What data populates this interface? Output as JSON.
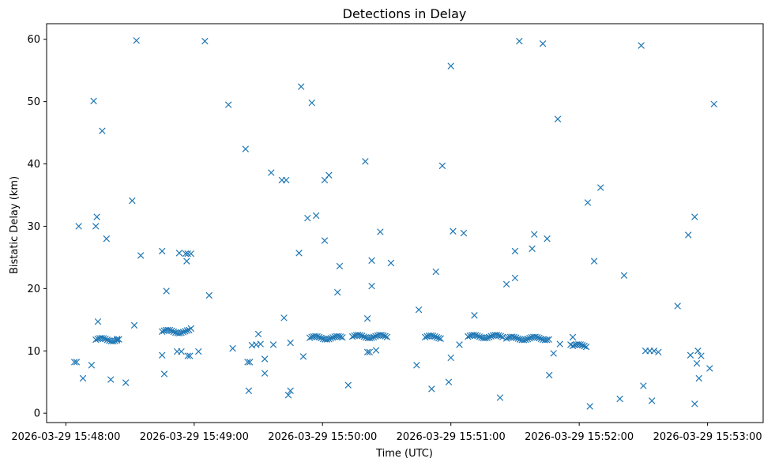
{
  "chart_data": {
    "type": "scatter",
    "title": "Detections in Delay",
    "xlabel": "Time (UTC)",
    "ylabel": "Bistatic Delay (km)",
    "marker": "x",
    "color": "#1f77b4",
    "x_unit": "seconds since 2026-03-29 15:48:00",
    "xlim": [
      -9,
      326
    ],
    "ylim": [
      -1.5,
      62.5
    ],
    "x_tick_labels": [
      {
        "value": 0,
        "label": "2026-03-29 15:48:00"
      },
      {
        "value": 60,
        "label": "2026-03-29 15:49:00"
      },
      {
        "value": 120,
        "label": "2026-03-29 15:50:00"
      },
      {
        "value": 180,
        "label": "2026-03-29 15:51:00"
      },
      {
        "value": 240,
        "label": "2026-03-29 15:52:00"
      },
      {
        "value": 300,
        "label": "2026-03-29 15:53:00"
      }
    ],
    "y_ticks": [
      0,
      10,
      20,
      30,
      40,
      50,
      60
    ],
    "clusters": [
      {
        "start": 14,
        "end": 25,
        "delay": 11.8
      },
      {
        "start": 45,
        "end": 58,
        "delay": 13.1
      },
      {
        "start": 114,
        "end": 130,
        "delay": 12.1
      },
      {
        "start": 134,
        "end": 151,
        "delay": 12.3
      },
      {
        "start": 168,
        "end": 176,
        "delay": 12.2
      },
      {
        "start": 188,
        "end": 205,
        "delay": 12.3
      },
      {
        "start": 206,
        "end": 226,
        "delay": 12.0
      },
      {
        "start": 237,
        "end": 244,
        "delay": 10.8
      }
    ],
    "points": [
      [
        4,
        8.2
      ],
      [
        5,
        8.2
      ],
      [
        6,
        30
      ],
      [
        8,
        5.6
      ],
      [
        12,
        7.7
      ],
      [
        13,
        50.1
      ],
      [
        14,
        30
      ],
      [
        14.5,
        31.5
      ],
      [
        15,
        14.7
      ],
      [
        17,
        45.3
      ],
      [
        19,
        28
      ],
      [
        21,
        5.4
      ],
      [
        24,
        11.9
      ],
      [
        28,
        4.9
      ],
      [
        31,
        34.1
      ],
      [
        32,
        14.1
      ],
      [
        33,
        59.8
      ],
      [
        35,
        25.3
      ],
      [
        45,
        26
      ],
      [
        45,
        9.3
      ],
      [
        46,
        6.3
      ],
      [
        47,
        19.6
      ],
      [
        52,
        9.9
      ],
      [
        53,
        25.7
      ],
      [
        54,
        9.9
      ],
      [
        56,
        25.6
      ],
      [
        56.5,
        24.4
      ],
      [
        57,
        25.6
      ],
      [
        57,
        9.2
      ],
      [
        58,
        9.2
      ],
      [
        58.5,
        25.6
      ],
      [
        58.5,
        13.6
      ],
      [
        62,
        9.9
      ],
      [
        65,
        59.7
      ],
      [
        67,
        18.9
      ],
      [
        76,
        49.5
      ],
      [
        78,
        10.4
      ],
      [
        84,
        42.4
      ],
      [
        85,
        8.2
      ],
      [
        85.5,
        3.6
      ],
      [
        86,
        8.2
      ],
      [
        87,
        10.9
      ],
      [
        89,
        11
      ],
      [
        90,
        12.7
      ],
      [
        91,
        11.1
      ],
      [
        93,
        6.4
      ],
      [
        93,
        8.7
      ],
      [
        96,
        38.6
      ],
      [
        97,
        11
      ],
      [
        101,
        37.4
      ],
      [
        102,
        15.3
      ],
      [
        103,
        37.4
      ],
      [
        104,
        2.9
      ],
      [
        105,
        3.6
      ],
      [
        105,
        11.3
      ],
      [
        109,
        25.7
      ],
      [
        110,
        52.4
      ],
      [
        111,
        9.1
      ],
      [
        113,
        31.3
      ],
      [
        115,
        49.8
      ],
      [
        117,
        31.7
      ],
      [
        121,
        37.4
      ],
      [
        121,
        27.7
      ],
      [
        123,
        38.2
      ],
      [
        127,
        19.4
      ],
      [
        128,
        23.6
      ],
      [
        132,
        4.5
      ],
      [
        140,
        40.4
      ],
      [
        141,
        15.2
      ],
      [
        141,
        9.8
      ],
      [
        142,
        9.8
      ],
      [
        143,
        20.4
      ],
      [
        143,
        24.5
      ],
      [
        145,
        10.1
      ],
      [
        147,
        29.1
      ],
      [
        152,
        24.1
      ],
      [
        164,
        7.7
      ],
      [
        165,
        16.6
      ],
      [
        171,
        3.9
      ],
      [
        173,
        22.7
      ],
      [
        176,
        39.7
      ],
      [
        179,
        5
      ],
      [
        180,
        55.7
      ],
      [
        180,
        8.9
      ],
      [
        181,
        29.2
      ],
      [
        184,
        11
      ],
      [
        186,
        28.9
      ],
      [
        191,
        15.7
      ],
      [
        203,
        2.5
      ],
      [
        206,
        20.7
      ],
      [
        210,
        26
      ],
      [
        210,
        21.7
      ],
      [
        212,
        59.7
      ],
      [
        218,
        26.4
      ],
      [
        219,
        28.7
      ],
      [
        223,
        59.3
      ],
      [
        225,
        28
      ],
      [
        226,
        6.1
      ],
      [
        228,
        9.6
      ],
      [
        230,
        47.2
      ],
      [
        231,
        11.1
      ],
      [
        236,
        11
      ],
      [
        237,
        12.2
      ],
      [
        244,
        33.8
      ],
      [
        245,
        1.1
      ],
      [
        247,
        24.4
      ],
      [
        250,
        36.2
      ],
      [
        259,
        2.3
      ],
      [
        261,
        22.1
      ],
      [
        269,
        59
      ],
      [
        270,
        4.4
      ],
      [
        271,
        10
      ],
      [
        273,
        10
      ],
      [
        274,
        2
      ],
      [
        275,
        10
      ],
      [
        277,
        9.8
      ],
      [
        286,
        17.2
      ],
      [
        291,
        28.6
      ],
      [
        292,
        9.3
      ],
      [
        294,
        31.5
      ],
      [
        294,
        1.5
      ],
      [
        295,
        8
      ],
      [
        295.5,
        10
      ],
      [
        296,
        5.6
      ],
      [
        297,
        9.2
      ],
      [
        301,
        7.2
      ],
      [
        303,
        49.6
      ]
    ]
  }
}
